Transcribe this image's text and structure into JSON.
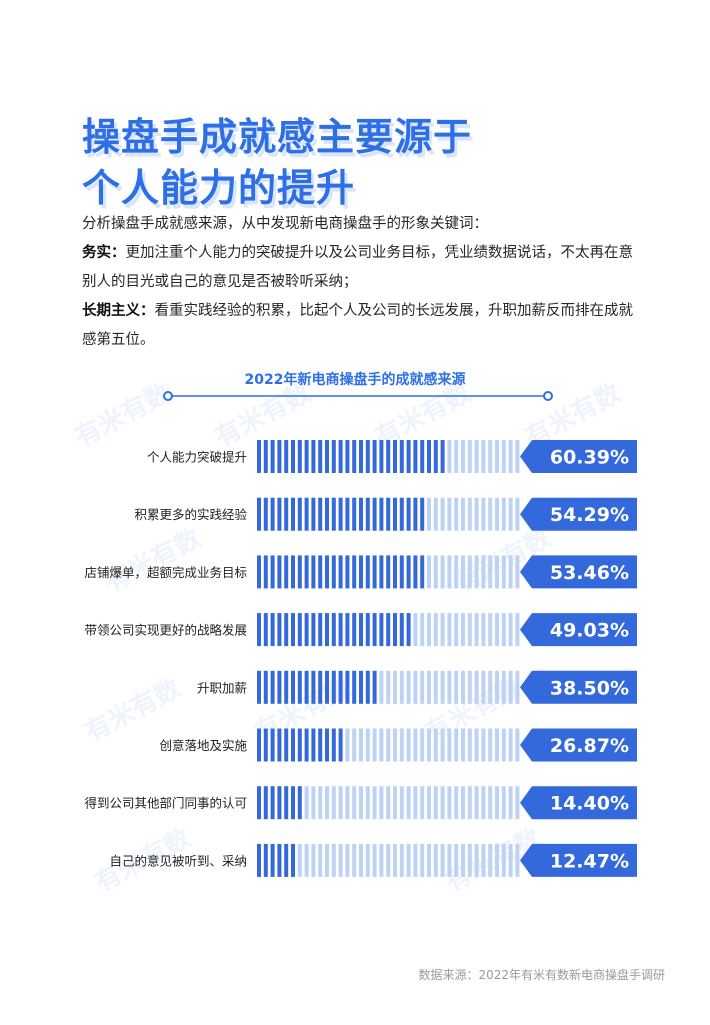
{
  "title_lines": [
    "操盘手成就感主要源于",
    "个人能力的提升"
  ],
  "intro": {
    "line1": "分析操盘手成就感来源，从中发现新电商操盘手的形象关键词：",
    "p2_label": "务实：",
    "p2_text": "更加注重个人能力的突破提升以及公司业务目标，凭业绩数据说话，不太再在意别人的目光或自己的意见是否被聆听采纳；",
    "p3_label": "长期主义：",
    "p3_text": "看重实践经验的积累，比起个人及公司的长远发展，升职加薪反而排在成就感第五位。"
  },
  "watermark_text": "有米有数",
  "source": "数据来源：2022年有米有数新电商操盘手调研",
  "colors": {
    "accent": "#2f6fe6",
    "bar_dark": "#3369db",
    "bar_light": "#bcd3f5",
    "badge": "#3369db"
  },
  "chart_data": {
    "type": "bar",
    "orientation": "horizontal",
    "title": "2022年新电商操盘手的成就感来源",
    "unit": "%",
    "categories": [
      "个人能力突破提升",
      "积累更多的实践经验",
      "店铺爆单，超额完成业务目标",
      "带领公司实现更好的战略发展",
      "升职加薪",
      "创意落地及实施",
      "得到公司其他部门同事的认可",
      "自己的意见被听到、采纳"
    ],
    "values": [
      60.39,
      54.29,
      53.46,
      49.03,
      38.5,
      26.87,
      14.4,
      12.47
    ],
    "value_labels": [
      "60.39%",
      "54.29%",
      "53.46%",
      "49.03%",
      "38.50%",
      "26.87%",
      "14.40%",
      "12.47%"
    ],
    "xlim": [
      0,
      100
    ]
  }
}
